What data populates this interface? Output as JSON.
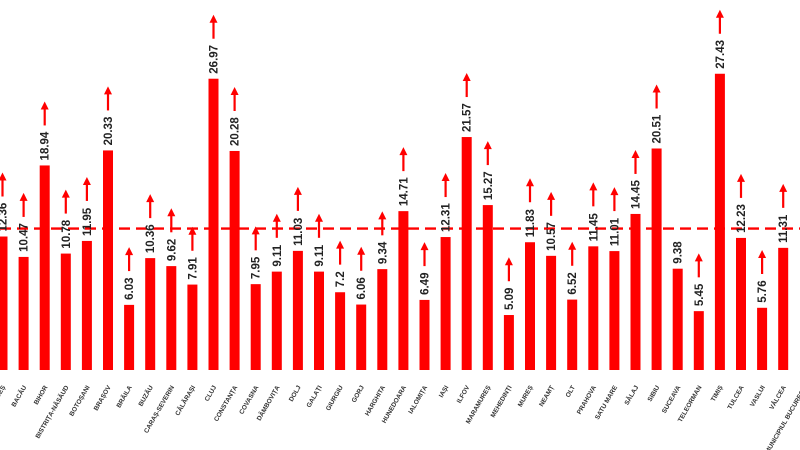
{
  "chart_data": {
    "type": "bar",
    "categories": [
      "ARGEȘ",
      "BACĂU",
      "BIHOR",
      "BISTRIȚA-NĂSĂUD",
      "BOTOȘANI",
      "BRAȘOV",
      "BRĂILA",
      "BUZĂU",
      "CARAȘ-SEVERIN",
      "CĂLĂRAȘI",
      "CLUJ",
      "CONSTANȚA",
      "COVASNA",
      "DÂMBOVIȚA",
      "DOLJ",
      "GALAȚI",
      "GIURGIU",
      "GORJ",
      "HARGHITA",
      "HUNEDOARA",
      "IALOMIȚA",
      "IAȘI",
      "ILFOV",
      "MARAMUREȘ",
      "MEHEDINȚI",
      "MUREȘ",
      "NEAMȚ",
      "OLT",
      "PRAHOVA",
      "SATU MARE",
      "SĂLAJ",
      "SIBIU",
      "SUCEAVA",
      "TELEORMAN",
      "TIMIȘ",
      "TULCEA",
      "VASLUI",
      "VÂLCEA",
      "MUNICIPIUL BUCUREȘTI"
    ],
    "values": [
      12.36,
      10.47,
      18.94,
      10.78,
      11.95,
      20.33,
      6.03,
      10.36,
      9.62,
      7.91,
      26.97,
      20.28,
      7.95,
      9.11,
      11.03,
      9.11,
      7.2,
      6.06,
      9.34,
      14.71,
      6.49,
      12.31,
      21.57,
      15.27,
      5.09,
      11.83,
      10.57,
      6.52,
      11.45,
      11.01,
      14.45,
      20.51,
      9.38,
      5.45,
      27.43,
      12.23,
      5.76,
      11.31,
      null
    ],
    "arrows": [
      true,
      true,
      true,
      true,
      true,
      true,
      true,
      true,
      true,
      true,
      true,
      true,
      true,
      true,
      true,
      true,
      true,
      true,
      true,
      true,
      true,
      true,
      true,
      true,
      true,
      true,
      true,
      true,
      true,
      true,
      true,
      true,
      false,
      true,
      true,
      true,
      true,
      true,
      true
    ],
    "reference_line": 13.1,
    "ylim": [
      0,
      29
    ],
    "grid": false,
    "legend": "none",
    "colors": {
      "bar": "#ff0000",
      "arrow": "#ff0000",
      "reference_line": "#ff0000",
      "label": "#222222"
    }
  }
}
